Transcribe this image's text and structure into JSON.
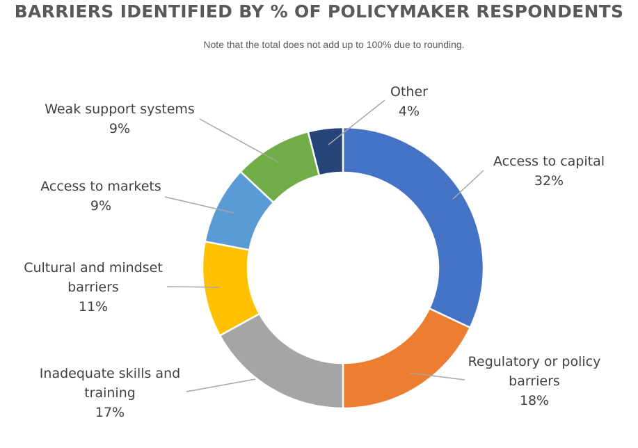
{
  "chart_data": {
    "type": "pie",
    "title": "BARRIERS IDENTIFIED BY % OF POLICYMAKER RESPONDENTS",
    "subtitle": "Note that the total does not add up to 100% due to rounding.",
    "donut": true,
    "slices": [
      {
        "label_lines": [
          "Access to capital"
        ],
        "percent_label": "32%",
        "value": 32,
        "color": "#4472c4"
      },
      {
        "label_lines": [
          "Regulatory or policy",
          "barriers"
        ],
        "percent_label": "18%",
        "value": 18,
        "color": "#ed7d31"
      },
      {
        "label_lines": [
          "Inadequate skills and",
          "training"
        ],
        "percent_label": "17%",
        "value": 17,
        "color": "#a5a5a5"
      },
      {
        "label_lines": [
          "Cultural and mindset",
          "barriers"
        ],
        "percent_label": "11%",
        "value": 11,
        "color": "#ffc000"
      },
      {
        "label_lines": [
          "Access to markets"
        ],
        "percent_label": "9%",
        "value": 9,
        "color": "#5b9bd5"
      },
      {
        "label_lines": [
          "Weak support systems"
        ],
        "percent_label": "9%",
        "value": 9,
        "color": "#70ad47"
      },
      {
        "label_lines": [
          "Other"
        ],
        "percent_label": "4%",
        "value": 4,
        "color": "#264478"
      }
    ]
  }
}
